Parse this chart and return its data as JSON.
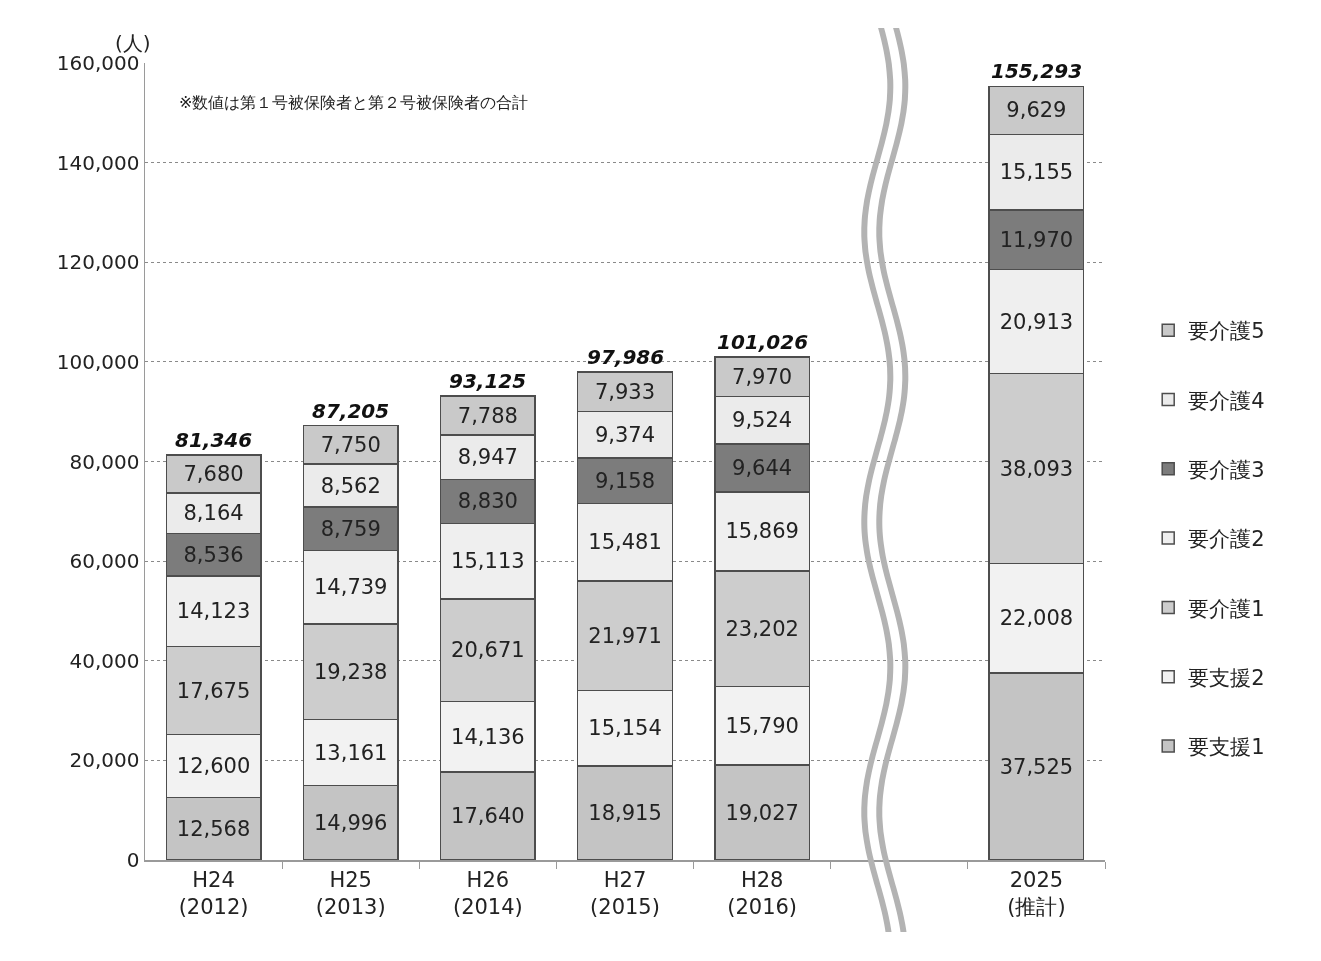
{
  "chart_data": {
    "type": "bar",
    "stacked": true,
    "ylabel": "(人)",
    "annotations": [
      "※数値は第１号被保険者と第２号被保険者の合計"
    ],
    "categories": [
      "H24\n(2012)",
      "H25\n(2013)",
      "H26\n(2014)",
      "H27\n(2015)",
      "H28\n(2016)",
      null,
      "2025\n(推計)"
    ],
    "series": [
      {
        "name": "要支援1",
        "color": "#c4c4c4",
        "values": [
          12568,
          14996,
          17640,
          18915,
          19027,
          null,
          37525
        ],
        "value_labels": [
          "12,568",
          "14,996",
          "17,640",
          "18,915",
          "19,027",
          null,
          "37,525"
        ]
      },
      {
        "name": "要支援2",
        "color": "#f2f2f2",
        "values": [
          12600,
          13161,
          14136,
          15154,
          15790,
          null,
          22008
        ],
        "value_labels": [
          "12,600",
          "13,161",
          "14,136",
          "15,154",
          "15,790",
          null,
          "22,008"
        ]
      },
      {
        "name": "要介護1",
        "color": "#cdcdcd",
        "values": [
          17675,
          19238,
          20671,
          21971,
          23202,
          null,
          38093
        ],
        "value_labels": [
          "17,675",
          "19,238",
          "20,671",
          "21,971",
          "23,202",
          null,
          "38,093"
        ]
      },
      {
        "name": "要介護2",
        "color": "#efefef",
        "values": [
          14123,
          14739,
          15113,
          15481,
          15869,
          null,
          20913
        ],
        "value_labels": [
          "14,123",
          "14,739",
          "15,113",
          "15,481",
          "15,869",
          null,
          "20,913"
        ]
      },
      {
        "name": "要介護3",
        "color": "#7c7c7c",
        "values": [
          8536,
          8759,
          8830,
          9158,
          9644,
          null,
          11970
        ],
        "value_labels": [
          "8,536",
          "8,759",
          "8,830",
          "9,158",
          "9,644",
          null,
          "11,970"
        ]
      },
      {
        "name": "要介護4",
        "color": "#ebebeb",
        "values": [
          8164,
          8562,
          8947,
          9374,
          9524,
          null,
          15155
        ],
        "value_labels": [
          "8,164",
          "8,562",
          "8,947",
          "9,374",
          "9,524",
          null,
          "15,155"
        ]
      },
      {
        "name": "要介護5",
        "color": "#c9c9c9",
        "values": [
          7680,
          7750,
          7788,
          7933,
          7970,
          null,
          9629
        ],
        "value_labels": [
          "7,680",
          "7,750",
          "7,788",
          "7,933",
          "7,970",
          null,
          "9,629"
        ]
      }
    ],
    "totals": [
      "81,346",
      "87,205",
      "93,125",
      "97,986",
      "101,026",
      null,
      "155,293"
    ],
    "ylim": [
      0,
      160000
    ],
    "yticks": [
      0,
      {
        "value": 20000,
        "label": "20,000"
      },
      {
        "value": 40000,
        "label": "40,000"
      },
      {
        "value": 60000,
        "label": "60,000"
      },
      {
        "value": 80000,
        "label": "80,000"
      },
      {
        "value": 100000,
        "label": "100,000"
      },
      {
        "value": 120000,
        "label": "120,000"
      },
      {
        "value": 140000,
        "label": "140,000"
      },
      {
        "value": 160000,
        "label": "160,000"
      }
    ],
    "grid": "y",
    "legend": "right"
  }
}
